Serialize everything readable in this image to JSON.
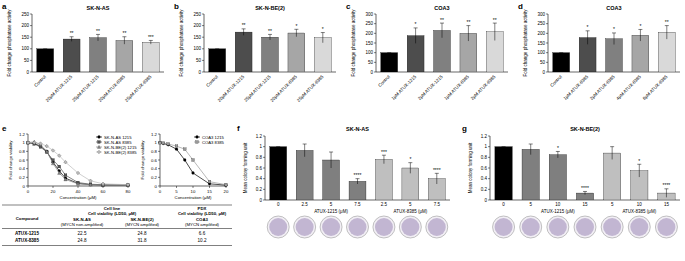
{
  "chart_data": [
    {
      "panel": "a",
      "type": "bar",
      "title": "SK-N-AS",
      "y_label": "Fold change phosphatase activity",
      "categories": [
        "Control",
        "20μM ATUX-1215",
        "25μM ATUX-1215",
        "20μM ATUX-8385",
        "25μM ATUX-8385"
      ],
      "values": [
        100,
        142,
        148,
        136,
        128
      ],
      "errors": [
        0,
        10,
        14,
        16,
        8
      ],
      "annotations": [
        null,
        "**",
        "**",
        "**",
        "***"
      ],
      "colors": [
        "#000000",
        "#4d4d4d",
        "#808080",
        "#a6a6a6",
        "#d9d9d9"
      ],
      "ylim": [
        0,
        250
      ],
      "yticks": [
        0,
        50,
        100,
        150,
        200,
        250
      ]
    },
    {
      "panel": "b",
      "type": "bar",
      "title": "SK-N-BE(2)",
      "y_label": "Fold change phosphatase activity",
      "categories": [
        "Control",
        "20μM ATUX-1215",
        "25μM ATUX-1215",
        "20μM ATUX-8385",
        "25μM ATUX-8385"
      ],
      "values": [
        100,
        172,
        150,
        168,
        148
      ],
      "errors": [
        0,
        14,
        12,
        16,
        22
      ],
      "annotations": [
        null,
        "**",
        "**",
        "*",
        "*"
      ],
      "colors": [
        "#000000",
        "#4d4d4d",
        "#808080",
        "#a6a6a6",
        "#d9d9d9"
      ],
      "ylim": [
        0,
        250
      ],
      "yticks": [
        0,
        50,
        100,
        150,
        200,
        250
      ]
    },
    {
      "panel": "c",
      "type": "bar",
      "title": "COA3",
      "y_label": "Fold change phosphatase activity",
      "categories": [
        "Control",
        "1μM ATUX-1215",
        "2μM ATUX-1215",
        "1μM ATUX-8385",
        "2μM ATUX-8385"
      ],
      "values": [
        100,
        188,
        215,
        200,
        208
      ],
      "errors": [
        0,
        40,
        38,
        40,
        45
      ],
      "annotations": [
        null,
        "*",
        "**",
        "**",
        "**"
      ],
      "colors": [
        "#000000",
        "#4d4d4d",
        "#808080",
        "#a6a6a6",
        "#d9d9d9"
      ],
      "ylim": [
        0,
        300
      ],
      "yticks": [
        0,
        50,
        100,
        150,
        200,
        250,
        300
      ]
    },
    {
      "panel": "d",
      "type": "bar",
      "title": "COA3",
      "y_label": "Fold change phosphatase activity",
      "categories": [
        "Control",
        "1μM ATUX-8385",
        "2μM ATUX-8385",
        "4μM ATUX-8385",
        "6μM ATUX-8385"
      ],
      "values": [
        100,
        178,
        172,
        190,
        205
      ],
      "errors": [
        0,
        35,
        30,
        30,
        35
      ],
      "annotations": [
        null,
        "*",
        "*",
        "*",
        "**"
      ],
      "colors": [
        "#000000",
        "#4d4d4d",
        "#808080",
        "#a6a6a6",
        "#d9d9d9"
      ],
      "ylim": [
        0,
        300
      ],
      "yticks": [
        0,
        50,
        100,
        150,
        200,
        250,
        300
      ]
    },
    {
      "panel": "e",
      "type": "line",
      "y_label": "Fold change viability",
      "x_label": "Concentration (μM)",
      "legend": "upper right",
      "x": [
        0,
        5,
        10,
        15,
        20,
        25,
        30,
        40,
        50,
        60,
        80
      ],
      "series": [
        {
          "name": "SK-N-AS 1215",
          "color": "#000000",
          "marker": "circle",
          "line_style": "solid",
          "values": [
            1,
            0.98,
            0.92,
            0.8,
            0.55,
            0.35,
            0.18,
            0.06,
            0.03,
            0.02,
            0.02
          ]
        },
        {
          "name": "SK-N-AS 8385",
          "color": "#555555",
          "marker": "square",
          "line_style": "solid",
          "values": [
            1,
            0.97,
            0.9,
            0.78,
            0.6,
            0.45,
            0.25,
            0.08,
            0.04,
            0.03,
            0.02
          ]
        },
        {
          "name": "SK-N-BE(2) 1215",
          "color": "#888888",
          "marker": "triangle",
          "line_style": "solid",
          "values": [
            1,
            1.02,
            0.95,
            0.8,
            0.52,
            0.3,
            0.15,
            0.05,
            0.03,
            0.02,
            0.02
          ]
        },
        {
          "name": "SK-N-BE(2) 8385",
          "color": "#bbbbbb",
          "marker": "diamond",
          "line_style": "solid",
          "values": [
            1,
            1,
            0.98,
            0.92,
            0.82,
            0.7,
            0.55,
            0.3,
            0.12,
            0.05,
            0.03
          ]
        }
      ],
      "xlim": [
        0,
        80
      ],
      "xticks": [
        0,
        20,
        40,
        60,
        80
      ],
      "ylim": [
        0,
        1.2
      ],
      "yticks": [
        0,
        0.2,
        0.4,
        0.6,
        0.8,
        1,
        1.2
      ]
    },
    {
      "type": "line",
      "y_label": "Fold change viability",
      "x_label": "Concentration (μM)",
      "legend": "upper right",
      "x": [
        0,
        1,
        2.5,
        5,
        7.5,
        10,
        15,
        20
      ],
      "series": [
        {
          "name": "COA3 1215",
          "color": "#000000",
          "marker": "circle",
          "line_style": "solid",
          "values": [
            1,
            0.98,
            0.95,
            0.85,
            0.6,
            0.3,
            0.05,
            0.02
          ]
        },
        {
          "name": "COA3 8385",
          "color": "#999999",
          "marker": "square",
          "line_style": "solid",
          "values": [
            1,
            0.99,
            0.97,
            0.92,
            0.85,
            0.6,
            0.1,
            0.03
          ]
        }
      ],
      "xlim": [
        0,
        20
      ],
      "xticks": [
        0,
        5,
        10,
        15,
        20
      ],
      "ylim": [
        0,
        1.2
      ],
      "yticks": [
        0,
        0.2,
        0.4,
        0.6,
        0.8,
        1,
        1.2
      ]
    },
    {
      "panel": "f",
      "type": "bar",
      "title": "SK-N-AS",
      "y_label": "Mean colony forming unit",
      "categories": [
        "0",
        "2.5",
        "5",
        "7.5",
        "2.5",
        "5",
        "7.5"
      ],
      "values": [
        1,
        0.93,
        0.75,
        0.35,
        0.76,
        0.6,
        0.4
      ],
      "errors": [
        0,
        0.12,
        0.15,
        0.05,
        0.08,
        0.1,
        0.1
      ],
      "annotations": [
        null,
        null,
        null,
        "****",
        "***",
        "*",
        "****"
      ],
      "groups": [
        {
          "label": "ATUX-1215 (μM)",
          "members": [
            1,
            2,
            3
          ]
        },
        {
          "label": "ATUX-8385 (μM)",
          "members": [
            4,
            5,
            6
          ]
        }
      ],
      "colors": [
        "#000000",
        "#7f7f7f",
        "#7f7f7f",
        "#7f7f7f",
        "#bfbfbf",
        "#bfbfbf",
        "#bfbfbf"
      ],
      "ylim": [
        0,
        1.2
      ],
      "yticks": [
        0,
        0.2,
        0.4,
        0.6,
        0.8,
        1,
        1.2
      ]
    },
    {
      "panel": "g",
      "type": "bar",
      "title": "SK-N-BE(2)",
      "y_label": "Mean colony forming unit",
      "categories": [
        "0",
        "5",
        "10",
        "15",
        "5",
        "10",
        "15"
      ],
      "values": [
        1,
        0.95,
        0.85,
        0.13,
        0.88,
        0.55,
        0.13
      ],
      "errors": [
        0,
        0.1,
        0.06,
        0.03,
        0.12,
        0.12,
        0.08
      ],
      "annotations": [
        null,
        null,
        "*",
        "****",
        null,
        "*",
        "****"
      ],
      "groups": [
        {
          "label": "ATUX-1215 (μM)",
          "members": [
            1,
            2,
            3
          ]
        },
        {
          "label": "ATUX-8385 (μM)",
          "members": [
            4,
            5,
            6
          ]
        }
      ],
      "colors": [
        "#000000",
        "#7f7f7f",
        "#7f7f7f",
        "#7f7f7f",
        "#bfbfbf",
        "#bfbfbf",
        "#bfbfbf"
      ],
      "ylim": [
        0,
        1.2
      ],
      "yticks": [
        0,
        0.2,
        0.4,
        0.6,
        0.8,
        1,
        1.2
      ]
    }
  ],
  "table": {
    "header": {
      "compound": "Compound",
      "groups": [
        [
          "Cell line",
          "Cell viability (LD50, μM)"
        ],
        [
          "PDX",
          "Cell viability (LD50, μM)"
        ]
      ],
      "columns": [
        [
          "SK-N-AS",
          "(MYCN non-amplified)"
        ],
        [
          "SK-N-BE(2)",
          "(MYCN amplified)"
        ],
        [
          "COA3",
          "(MYCN amplified)"
        ]
      ]
    },
    "rows": [
      [
        "ATUX-1215",
        22.5,
        24.8,
        6.6
      ],
      [
        "ATUX-8385",
        24.8,
        31.8,
        10.2
      ]
    ]
  }
}
